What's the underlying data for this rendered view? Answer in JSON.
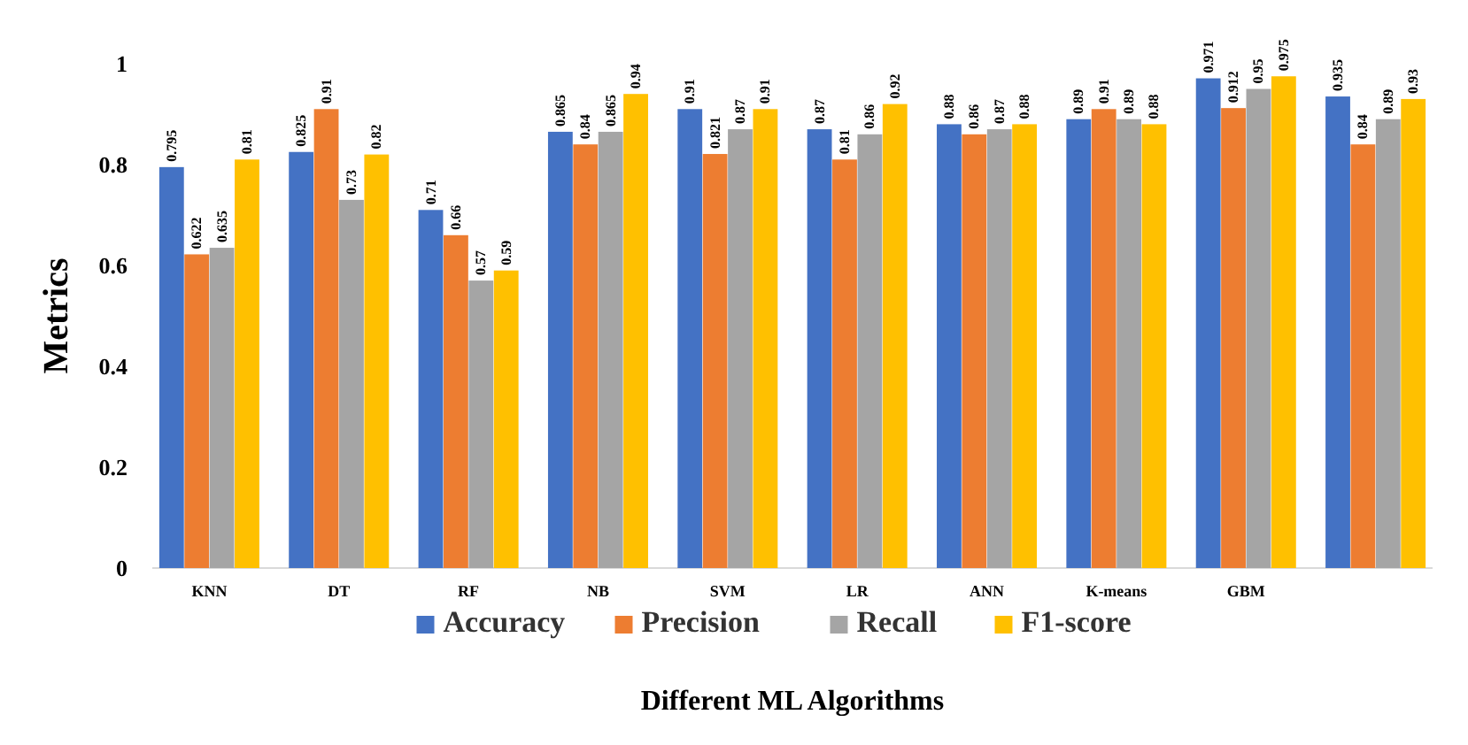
{
  "chart_data": {
    "type": "bar",
    "xlabel": "Different ML Algorithms",
    "ylabel": "Metrics",
    "categories": [
      "KNN",
      "DT",
      "RF",
      "NB",
      "SVM",
      "LR",
      "ANN",
      "K-means",
      "GBM",
      null
    ],
    "series": [
      {
        "name": "Accuracy",
        "color": "#4472c4",
        "values": [
          0.795,
          0.825,
          0.71,
          0.865,
          0.91,
          0.87,
          0.88,
          0.89,
          0.971,
          0.935
        ]
      },
      {
        "name": "Precision",
        "color": "#ed7d31",
        "values": [
          0.622,
          0.91,
          0.66,
          0.84,
          0.821,
          0.81,
          0.86,
          0.91,
          0.912,
          0.84
        ]
      },
      {
        "name": "Recall",
        "color": "#a5a5a5",
        "values": [
          0.635,
          0.73,
          0.57,
          0.865,
          0.87,
          0.86,
          0.87,
          0.89,
          0.95,
          0.89
        ]
      },
      {
        "name": "F1-score",
        "color": "#ffc000",
        "values": [
          0.81,
          0.82,
          0.59,
          0.94,
          0.91,
          0.92,
          0.88,
          0.88,
          0.975,
          0.93
        ]
      }
    ],
    "ylim": [
      0,
      1
    ],
    "yticks": [
      0,
      0.2,
      0.4,
      0.6,
      0.8,
      1
    ],
    "data_labels": true,
    "legend": "bottom",
    "grid": false
  }
}
